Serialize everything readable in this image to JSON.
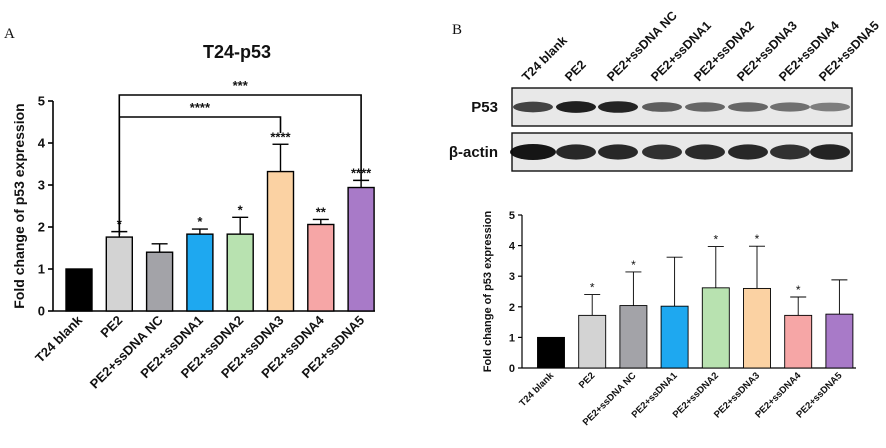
{
  "panel_a_letter": "A",
  "panel_b_letter": "B",
  "chart_data": [
    {
      "type": "bar",
      "title": "T24-p53",
      "xlabel": "",
      "ylabel": "Fold change of p53 expression",
      "ylim": [
        0,
        5
      ],
      "yticks": [
        "0",
        "1",
        "2",
        "3",
        "4",
        "5"
      ],
      "categories": [
        "T24 blank",
        "PE2",
        "PE2+ssDNA NC",
        "PE2+ssDNA1",
        "PE2+ssDNA2",
        "PE2+ssDNA3",
        "PE2+ssDNA4",
        "PE2+ssDNA5"
      ],
      "values": [
        1.0,
        1.76,
        1.4,
        1.83,
        1.83,
        3.32,
        2.06,
        2.94
      ],
      "errors": [
        0.0,
        0.13,
        0.2,
        0.12,
        0.4,
        0.65,
        0.12,
        0.17
      ],
      "colors": [
        "#000000",
        "#d3d3d3",
        "#a3a3a8",
        "#1ea8f0",
        "#b8e2b0",
        "#fbd2a3",
        "#f6a6a6",
        "#a87ac8"
      ],
      "significance": [
        "",
        "*",
        "",
        "*",
        "*",
        "****",
        "**",
        "****"
      ],
      "brackets": [
        {
          "from": "PE2",
          "to": "PE2+ssDNA3",
          "label": "****"
        },
        {
          "from": "PE2",
          "to": "PE2+ssDNA5",
          "label": "***"
        }
      ]
    },
    {
      "type": "bar",
      "title": "",
      "xlabel": "",
      "ylabel": "Fold change of p53 expression",
      "ylim": [
        0,
        5
      ],
      "yticks": [
        "0",
        "1",
        "2",
        "3",
        "4",
        "5"
      ],
      "categories": [
        "T24 blank",
        "PE2",
        "PE2+ssDNA NC",
        "PE2+ssDNA1",
        "PE2+ssDNA2",
        "PE2+ssDNA3",
        "PE2+ssDNA4",
        "PE2+ssDNA5"
      ],
      "values": [
        1.0,
        1.72,
        2.04,
        2.02,
        2.62,
        2.6,
        1.72,
        1.76
      ],
      "errors": [
        0.0,
        0.68,
        1.1,
        1.6,
        1.35,
        1.38,
        0.6,
        1.12
      ],
      "colors": [
        "#000000",
        "#d3d3d3",
        "#a3a3a8",
        "#1ea8f0",
        "#b8e2b0",
        "#fbd2a3",
        "#f6a6a6",
        "#a87ac8"
      ],
      "significance": [
        "",
        "*",
        "*",
        "",
        "*",
        "*",
        "*",
        ""
      ]
    }
  ],
  "blot": {
    "lanes": [
      "T24 blank",
      "PE2",
      "PE2+ssDNA NC",
      "PE2+ssDNA1",
      "PE2+ssDNA2",
      "PE2+ssDNA3",
      "PE2+ssDNA4",
      "PE2+ssDNA5"
    ],
    "rows": [
      {
        "label": "P53",
        "intensities": [
          0.75,
          0.95,
          0.92,
          0.6,
          0.55,
          0.55,
          0.5,
          0.42
        ]
      },
      {
        "label": "β-actin",
        "intensities": [
          1.0,
          0.9,
          0.9,
          0.85,
          0.88,
          0.9,
          0.85,
          0.92
        ]
      }
    ]
  }
}
